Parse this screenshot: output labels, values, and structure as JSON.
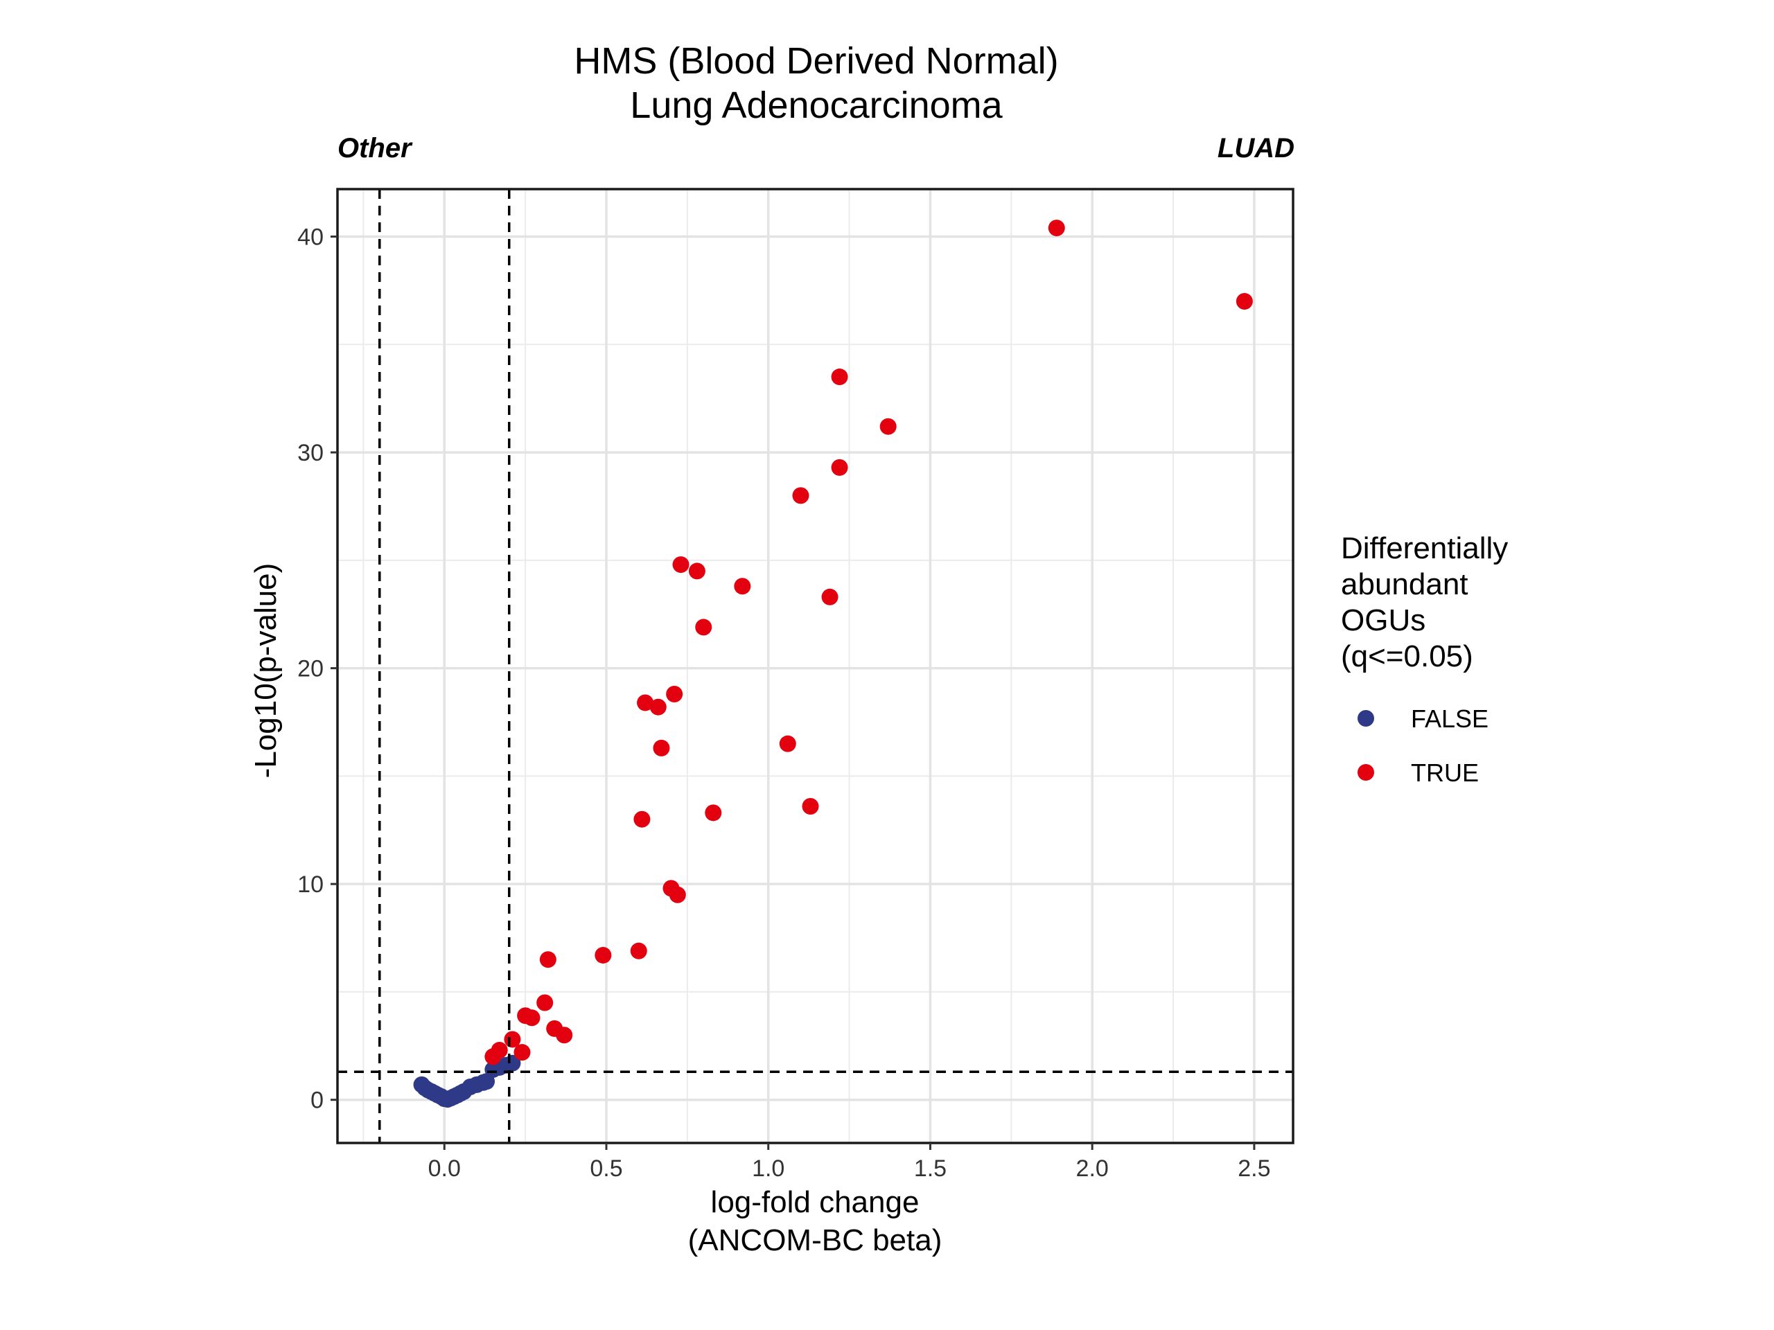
{
  "chart_data": {
    "type": "scatter",
    "title": "HMS (Blood Derived Normal)",
    "subtitle": "Lung Adenocarcinoma",
    "left_annotation": "Other",
    "right_annotation": "LUAD",
    "xlabel_line1": "log-fold change",
    "xlabel_line2": "(ANCOM-BC beta)",
    "ylabel": "-Log10(p-value)",
    "xlim": [
      -0.33,
      2.62
    ],
    "ylim": [
      -2,
      42.2
    ],
    "xticks": [
      0.0,
      0.5,
      1.0,
      1.5,
      2.0,
      2.5
    ],
    "xtick_labels": [
      "0.0",
      "0.5",
      "1.0",
      "1.5",
      "2.0",
      "2.5"
    ],
    "yticks": [
      0,
      10,
      20,
      30,
      40
    ],
    "ytick_labels": [
      "0",
      "10",
      "20",
      "30",
      "40"
    ],
    "grid": true,
    "reference_lines": {
      "vertical": [
        -0.2,
        0.2
      ],
      "horizontal": [
        1.3
      ]
    },
    "legend": {
      "title_lines": [
        "Differentially",
        "abundant",
        "OGUs",
        "(q<=0.05)"
      ],
      "position": "right"
    },
    "series": [
      {
        "name": "FALSE",
        "color": "#2E3A87",
        "points": [
          [
            -0.07,
            0.7
          ],
          [
            -0.06,
            0.55
          ],
          [
            -0.05,
            0.45
          ],
          [
            -0.04,
            0.38
          ],
          [
            -0.03,
            0.3
          ],
          [
            -0.02,
            0.22
          ],
          [
            -0.01,
            0.15
          ],
          [
            0.0,
            0.05
          ],
          [
            0.01,
            0.02
          ],
          [
            0.02,
            0.08
          ],
          [
            0.03,
            0.15
          ],
          [
            0.04,
            0.22
          ],
          [
            0.05,
            0.3
          ],
          [
            0.06,
            0.38
          ],
          [
            0.08,
            0.6
          ],
          [
            0.1,
            0.7
          ],
          [
            0.12,
            0.8
          ],
          [
            0.13,
            0.85
          ],
          [
            0.15,
            1.4
          ],
          [
            0.17,
            1.5
          ],
          [
            0.19,
            1.6
          ],
          [
            0.21,
            1.7
          ]
        ]
      },
      {
        "name": "TRUE",
        "color": "#E3000F",
        "points": [
          [
            0.15,
            2.0
          ],
          [
            0.17,
            2.3
          ],
          [
            0.21,
            2.8
          ],
          [
            0.24,
            2.2
          ],
          [
            0.25,
            3.9
          ],
          [
            0.27,
            3.8
          ],
          [
            0.31,
            4.5
          ],
          [
            0.32,
            6.5
          ],
          [
            0.34,
            3.3
          ],
          [
            0.37,
            3.0
          ],
          [
            0.49,
            6.7
          ],
          [
            0.6,
            6.9
          ],
          [
            0.61,
            13.0
          ],
          [
            0.62,
            18.4
          ],
          [
            0.66,
            18.2
          ],
          [
            0.67,
            16.3
          ],
          [
            0.7,
            9.8
          ],
          [
            0.71,
            18.8
          ],
          [
            0.72,
            9.5
          ],
          [
            0.73,
            24.8
          ],
          [
            0.78,
            24.5
          ],
          [
            0.8,
            21.9
          ],
          [
            0.83,
            13.3
          ],
          [
            0.92,
            23.8
          ],
          [
            1.06,
            16.5
          ],
          [
            1.1,
            28.0
          ],
          [
            1.13,
            13.6
          ],
          [
            1.19,
            23.3
          ],
          [
            1.22,
            29.3
          ],
          [
            1.22,
            33.5
          ],
          [
            1.37,
            31.2
          ],
          [
            1.89,
            40.4
          ],
          [
            2.47,
            37.0
          ]
        ]
      }
    ]
  }
}
